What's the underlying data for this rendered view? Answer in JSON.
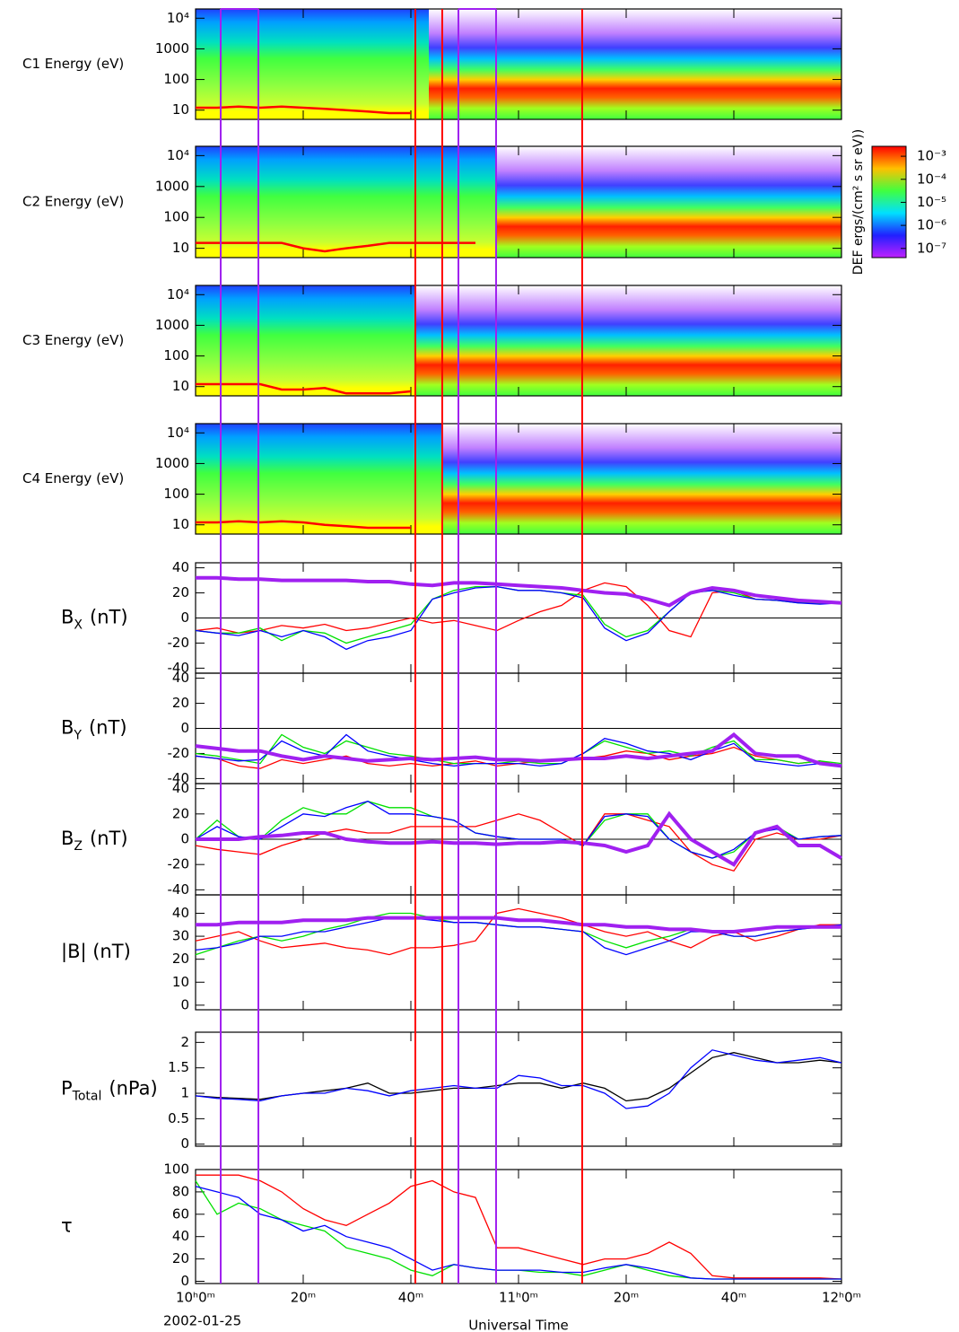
{
  "axis": {
    "x": [
      0,
      4,
      8,
      12,
      16,
      20,
      24,
      28,
      32,
      36,
      40,
      44,
      48,
      52,
      56,
      60,
      64,
      68,
      72,
      76,
      80,
      84,
      88,
      92,
      96,
      100,
      104,
      108,
      112,
      116,
      120
    ],
    "xlim": [
      0,
      120
    ],
    "xticks": [
      {
        "value": 0,
        "label": "10ʰ0ᵐ"
      },
      {
        "value": 20,
        "label": "20ᵐ"
      },
      {
        "value": 40,
        "label": "40ᵐ"
      },
      {
        "value": 60,
        "label": "11ʰ0ᵐ"
      },
      {
        "value": 80,
        "label": "20ᵐ"
      },
      {
        "value": 100,
        "label": "40ᵐ"
      },
      {
        "value": 120,
        "label": "12ʰ0ᵐ"
      }
    ],
    "xlabel": "Universal Time",
    "date": "2002-01-25",
    "markers": [
      {
        "color": "#a020f0",
        "x": [
          4.67,
          11.67,
          48.83,
          55.83
        ]
      },
      {
        "color": "#ff0000",
        "x": [
          40.83,
          45.83,
          71.83
        ]
      }
    ],
    "colorbar": {
      "label": "DEF ergs/(cm² s sr eV))",
      "ylim": [
        4e-08,
        0.0027
      ],
      "log": true,
      "yticks": [
        {
          "value": 0.001,
          "label": "10⁻³"
        },
        {
          "value": 0.0001,
          "label": "10⁻⁴"
        },
        {
          "value": 1e-05,
          "label": "10⁻⁵"
        },
        {
          "value": 1e-06,
          "label": "10⁻⁶"
        },
        {
          "value": 1e-07,
          "label": "10⁻⁷"
        }
      ]
    }
  },
  "chart_data": [
    {
      "type": "spectrogram",
      "ylabel": "C1 Energy (eV)",
      "log": true,
      "ylim": [
        5,
        20000
      ],
      "yticks": [
        10,
        100,
        1000,
        {
          "value": 10000,
          "label": "10⁴"
        }
      ],
      "series": [
        {
          "color": "#ff0000",
          "values": [
            12,
            12,
            13,
            12,
            13,
            12,
            11,
            10,
            9,
            8,
            8,
            null,
            null,
            null,
            null,
            null,
            null,
            null,
            null,
            null,
            null,
            null,
            null,
            null,
            null,
            null,
            null,
            null,
            null,
            null,
            null
          ]
        }
      ]
    },
    {
      "type": "spectrogram",
      "ylabel": "C2 Energy (eV)",
      "log": true,
      "ylim": [
        5,
        20000
      ],
      "yticks": [
        10,
        100,
        1000,
        {
          "value": 10000,
          "label": "10⁴"
        }
      ],
      "series": [
        {
          "color": "#ff0000",
          "values": [
            15,
            15,
            15,
            15,
            15,
            10,
            8,
            10,
            12,
            15,
            15,
            15,
            15,
            15,
            null,
            null,
            null,
            null,
            null,
            null,
            null,
            null,
            null,
            null,
            null,
            null,
            null,
            null,
            null,
            null,
            null
          ]
        }
      ]
    },
    {
      "type": "spectrogram",
      "ylabel": "C3 Energy (eV)",
      "log": true,
      "ylim": [
        5,
        20000
      ],
      "yticks": [
        10,
        100,
        1000,
        {
          "value": 10000,
          "label": "10⁴"
        }
      ],
      "series": [
        {
          "color": "#ff0000",
          "values": [
            12,
            12,
            12,
            12,
            8,
            8,
            9,
            6,
            6,
            6,
            7,
            null,
            null,
            null,
            null,
            null,
            null,
            null,
            null,
            null,
            null,
            null,
            null,
            null,
            null,
            null,
            null,
            null,
            null,
            null,
            null
          ]
        }
      ]
    },
    {
      "type": "spectrogram",
      "ylabel": "C4 Energy (eV)",
      "log": true,
      "ylim": [
        5,
        20000
      ],
      "yticks": [
        10,
        100,
        1000,
        {
          "value": 10000,
          "label": "10⁴"
        }
      ],
      "series": [
        {
          "color": "#ff0000",
          "values": [
            12,
            12,
            13,
            12,
            13,
            12,
            10,
            9,
            8,
            8,
            8,
            null,
            null,
            null,
            null,
            null,
            null,
            null,
            null,
            null,
            null,
            null,
            null,
            null,
            null,
            null,
            null,
            null,
            null,
            null,
            null
          ]
        }
      ]
    },
    {
      "type": "line",
      "ylabel": [
        "B",
        "X",
        "(nT)"
      ],
      "ylim": [
        -44,
        44
      ],
      "yticks": [
        -40,
        -20,
        0,
        20,
        40
      ],
      "zeroline": true,
      "series": [
        {
          "color": "#ff0000",
          "values": [
            -10,
            -8,
            -12,
            -10,
            -6,
            -8,
            -5,
            -10,
            -8,
            -4,
            0,
            -4,
            -2,
            -6,
            -10,
            -2,
            5,
            10,
            22,
            28,
            25,
            10,
            -10,
            -15,
            20,
            22,
            15,
            14,
            13,
            12,
            12
          ]
        },
        {
          "color": "#00e000",
          "values": [
            -10,
            -12,
            -12,
            -8,
            -18,
            -10,
            -12,
            -20,
            -15,
            -10,
            -5,
            15,
            22,
            25,
            25,
            22,
            22,
            20,
            18,
            -5,
            -15,
            -10,
            5,
            20,
            22,
            20,
            15,
            14,
            12,
            12,
            12
          ]
        },
        {
          "color": "#0000ff",
          "values": [
            -10,
            -12,
            -14,
            -10,
            -15,
            -10,
            -15,
            -25,
            -18,
            -15,
            -10,
            15,
            20,
            24,
            25,
            22,
            22,
            20,
            16,
            -8,
            -18,
            -12,
            5,
            20,
            22,
            18,
            15,
            14,
            12,
            11,
            12
          ]
        },
        {
          "color": "#a020f0",
          "thick": true,
          "values": [
            32,
            32,
            31,
            31,
            30,
            30,
            30,
            30,
            29,
            29,
            27,
            26,
            28,
            28,
            27,
            26,
            25,
            24,
            22,
            20,
            19,
            15,
            10,
            20,
            24,
            22,
            18,
            16,
            14,
            13,
            12
          ]
        }
      ]
    },
    {
      "type": "line",
      "ylabel": [
        "B",
        "Y",
        "(nT)"
      ],
      "ylim": [
        -44,
        44
      ],
      "yticks": [
        -40,
        -20,
        0,
        20,
        40
      ],
      "zeroline": true,
      "series": [
        {
          "color": "#ff0000",
          "values": [
            -22,
            -24,
            -30,
            -32,
            -25,
            -28,
            -25,
            -22,
            -28,
            -30,
            -28,
            -30,
            -28,
            -26,
            -30,
            -28,
            -26,
            -25,
            -24,
            -22,
            -18,
            -20,
            -25,
            -22,
            -20,
            -15,
            -22,
            -25,
            -28,
            -26,
            -30
          ]
        },
        {
          "color": "#00e000",
          "values": [
            -20,
            -22,
            -25,
            -28,
            -5,
            -15,
            -20,
            -10,
            -15,
            -20,
            -22,
            -25,
            -28,
            -28,
            -28,
            -26,
            -28,
            -28,
            -20,
            -10,
            -15,
            -20,
            -18,
            -22,
            -15,
            -10,
            -25,
            -25,
            -28,
            -26,
            -28
          ]
        },
        {
          "color": "#0000ff",
          "values": [
            -22,
            -24,
            -26,
            -25,
            -10,
            -18,
            -22,
            -5,
            -18,
            -22,
            -25,
            -28,
            -30,
            -28,
            -28,
            -28,
            -30,
            -28,
            -20,
            -8,
            -12,
            -18,
            -20,
            -25,
            -18,
            -12,
            -26,
            -28,
            -30,
            -28,
            -30
          ]
        },
        {
          "color": "#a020f0",
          "thick": true,
          "values": [
            -14,
            -16,
            -18,
            -18,
            -22,
            -25,
            -22,
            -24,
            -26,
            -25,
            -24,
            -25,
            -24,
            -23,
            -25,
            -25,
            -26,
            -25,
            -24,
            -24,
            -22,
            -24,
            -22,
            -20,
            -18,
            -5,
            -20,
            -22,
            -22,
            -28,
            -30
          ]
        }
      ]
    },
    {
      "type": "line",
      "ylabel": [
        "B",
        "Z",
        "(nT)"
      ],
      "ylim": [
        -44,
        44
      ],
      "yticks": [
        -40,
        -20,
        0,
        20,
        40
      ],
      "zeroline": true,
      "series": [
        {
          "color": "#ff0000",
          "values": [
            -5,
            -8,
            -10,
            -12,
            -5,
            0,
            5,
            8,
            5,
            5,
            10,
            10,
            10,
            10,
            15,
            20,
            15,
            5,
            -5,
            20,
            20,
            15,
            10,
            -10,
            -20,
            -25,
            0,
            5,
            0,
            0,
            3
          ]
        },
        {
          "color": "#00e000",
          "values": [
            0,
            15,
            2,
            0,
            15,
            25,
            20,
            20,
            30,
            25,
            25,
            18,
            15,
            5,
            2,
            0,
            0,
            0,
            -5,
            15,
            20,
            20,
            0,
            -10,
            -15,
            -10,
            5,
            10,
            0,
            2,
            3
          ]
        },
        {
          "color": "#0000ff",
          "values": [
            0,
            10,
            2,
            0,
            10,
            20,
            18,
            25,
            30,
            20,
            20,
            18,
            15,
            5,
            2,
            0,
            0,
            0,
            -5,
            18,
            20,
            18,
            0,
            -10,
            -15,
            -8,
            5,
            8,
            0,
            2,
            3
          ]
        },
        {
          "color": "#a020f0",
          "thick": true,
          "values": [
            0,
            0,
            0,
            2,
            3,
            5,
            5,
            0,
            -2,
            -3,
            -3,
            -2,
            -3,
            -3,
            -4,
            -3,
            -3,
            -2,
            -3,
            -5,
            -10,
            -5,
            20,
            0,
            -10,
            -20,
            5,
            10,
            -5,
            -5,
            -15
          ]
        }
      ]
    },
    {
      "type": "line",
      "ylabel": "|B| (nT)",
      "ylim": [
        -2,
        48
      ],
      "yticks": [
        0,
        10,
        20,
        30,
        40
      ],
      "series": [
        {
          "color": "#ff0000",
          "values": [
            28,
            30,
            32,
            28,
            25,
            26,
            27,
            25,
            24,
            22,
            25,
            25,
            26,
            28,
            40,
            42,
            40,
            38,
            35,
            32,
            30,
            32,
            28,
            25,
            30,
            32,
            28,
            30,
            33,
            35,
            35
          ]
        },
        {
          "color": "#00e000",
          "values": [
            22,
            25,
            28,
            30,
            28,
            30,
            33,
            35,
            38,
            40,
            40,
            38,
            36,
            36,
            35,
            34,
            34,
            33,
            32,
            28,
            25,
            28,
            30,
            33,
            32,
            30,
            30,
            32,
            33,
            34,
            35
          ]
        },
        {
          "color": "#0000ff",
          "values": [
            24,
            25,
            27,
            30,
            30,
            32,
            32,
            34,
            36,
            38,
            38,
            37,
            36,
            36,
            35,
            34,
            34,
            33,
            32,
            25,
            22,
            25,
            28,
            32,
            32,
            30,
            30,
            32,
            33,
            34,
            35
          ]
        },
        {
          "color": "#a020f0",
          "thick": true,
          "values": [
            35,
            35,
            36,
            36,
            36,
            37,
            37,
            37,
            38,
            38,
            38,
            38,
            38,
            38,
            38,
            37,
            37,
            36,
            35,
            35,
            34,
            34,
            33,
            33,
            32,
            32,
            33,
            34,
            34,
            34,
            34
          ]
        }
      ]
    },
    {
      "type": "line",
      "ylabel": [
        "P",
        "Total",
        "(nPa)"
      ],
      "ylim": [
        -0.04,
        2.2
      ],
      "yticks": [
        0,
        0.5,
        1,
        1.5,
        2
      ],
      "series": [
        {
          "color": "#000000",
          "values": [
            0.95,
            0.92,
            0.9,
            0.88,
            0.95,
            1.0,
            1.05,
            1.1,
            1.2,
            1.0,
            1.0,
            1.05,
            1.1,
            1.1,
            1.15,
            1.2,
            1.2,
            1.1,
            1.2,
            1.1,
            0.85,
            0.9,
            1.1,
            1.4,
            1.7,
            1.8,
            1.7,
            1.6,
            1.6,
            1.65,
            1.6
          ]
        },
        {
          "color": "#0000ff",
          "values": [
            0.95,
            0.9,
            0.88,
            0.85,
            0.95,
            1.0,
            1.0,
            1.1,
            1.05,
            0.95,
            1.05,
            1.1,
            1.15,
            1.1,
            1.1,
            1.35,
            1.3,
            1.15,
            1.15,
            1.0,
            0.7,
            0.75,
            1.0,
            1.5,
            1.85,
            1.75,
            1.65,
            1.6,
            1.65,
            1.7,
            1.6
          ]
        }
      ]
    },
    {
      "type": "line",
      "ylabel": "τ",
      "ylim": [
        -2,
        100
      ],
      "yticks": [
        0,
        20,
        40,
        60,
        80,
        100
      ],
      "series": [
        {
          "color": "#ff0000",
          "values": [
            95,
            95,
            95,
            90,
            80,
            65,
            55,
            50,
            60,
            70,
            85,
            90,
            80,
            75,
            30,
            30,
            25,
            20,
            15,
            20,
            20,
            25,
            35,
            25,
            5,
            3,
            3,
            3,
            3,
            3,
            2
          ]
        },
        {
          "color": "#00e000",
          "values": [
            90,
            60,
            70,
            65,
            55,
            50,
            45,
            30,
            25,
            20,
            10,
            5,
            15,
            12,
            10,
            10,
            8,
            8,
            5,
            10,
            15,
            10,
            5,
            3,
            2,
            2,
            2,
            2,
            2,
            2,
            2
          ]
        },
        {
          "color": "#0000ff",
          "values": [
            85,
            80,
            75,
            60,
            55,
            45,
            50,
            40,
            35,
            30,
            20,
            10,
            15,
            12,
            10,
            10,
            10,
            8,
            8,
            12,
            15,
            12,
            8,
            3,
            2,
            2,
            2,
            2,
            2,
            2,
            2
          ]
        }
      ]
    }
  ]
}
